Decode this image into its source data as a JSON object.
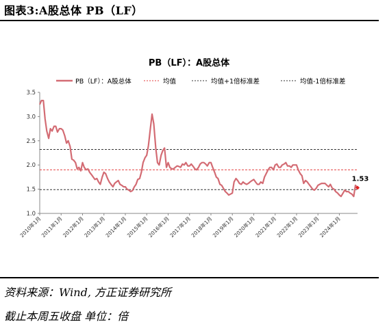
{
  "figure": {
    "title": "图表3:A股总体 PB（LF）",
    "source": "资料来源：Wind, 方正证券研究所",
    "note": "截止本周五收盘 单位：倍"
  },
  "chart_data": {
    "type": "line",
    "title": "PB（LF）：A股总体",
    "legend": [
      "PB（LF）：A股总体",
      "均值",
      "均值+1倍标准差",
      "均值-1倍标准差"
    ],
    "legend_position": "top",
    "ylim": [
      1.0,
      3.5
    ],
    "y_ticks": [
      "1.0",
      "1.5",
      "2.0",
      "2.5",
      "3.0",
      "3.5"
    ],
    "x_ticks": [
      "2010年1月",
      "2011年1月",
      "2012年1月",
      "2013年1月",
      "2014年1月",
      "2015年1月",
      "2016年1月",
      "2017年1月",
      "2018年1月",
      "2019年1月",
      "2020年1月",
      "2021年1月",
      "2022年1月",
      "2023年1月",
      "2024年1月"
    ],
    "x_range": [
      2010.0,
      2024.85
    ],
    "mean": 1.9,
    "mean_plus_1sd": 2.32,
    "mean_minus_1sd": 1.49,
    "last_value_label": "1.53",
    "colors": {
      "series": "#d36b73",
      "mean": "#e33b3b",
      "sd": "#333333",
      "last_marker": "#e02020"
    },
    "series": [
      {
        "name": "PB（LF）：A股总体",
        "x": [
          2010.0,
          2010.08,
          2010.17,
          2010.25,
          2010.33,
          2010.42,
          2010.5,
          2010.58,
          2010.67,
          2010.75,
          2010.83,
          2010.92,
          2011.0,
          2011.08,
          2011.17,
          2011.25,
          2011.33,
          2011.42,
          2011.5,
          2011.58,
          2011.67,
          2011.75,
          2011.83,
          2011.92,
          2012.0,
          2012.08,
          2012.17,
          2012.25,
          2012.33,
          2012.42,
          2012.5,
          2012.58,
          2012.67,
          2012.75,
          2012.83,
          2012.92,
          2013.0,
          2013.08,
          2013.17,
          2013.25,
          2013.33,
          2013.42,
          2013.5,
          2013.58,
          2013.67,
          2013.75,
          2013.83,
          2013.92,
          2014.0,
          2014.08,
          2014.17,
          2014.25,
          2014.33,
          2014.42,
          2014.5,
          2014.58,
          2014.67,
          2014.75,
          2014.83,
          2014.92,
          2015.0,
          2015.08,
          2015.17,
          2015.25,
          2015.33,
          2015.42,
          2015.5,
          2015.58,
          2015.67,
          2015.75,
          2015.83,
          2015.92,
          2016.0,
          2016.08,
          2016.17,
          2016.25,
          2016.33,
          2016.42,
          2016.5,
          2016.58,
          2016.67,
          2016.75,
          2016.83,
          2016.92,
          2017.0,
          2017.08,
          2017.17,
          2017.25,
          2017.33,
          2017.42,
          2017.5,
          2017.58,
          2017.67,
          2017.75,
          2017.83,
          2017.92,
          2018.0,
          2018.08,
          2018.17,
          2018.25,
          2018.33,
          2018.42,
          2018.5,
          2018.58,
          2018.67,
          2018.75,
          2018.83,
          2018.92,
          2019.0,
          2019.08,
          2019.17,
          2019.25,
          2019.33,
          2019.42,
          2019.5,
          2019.58,
          2019.67,
          2019.75,
          2019.83,
          2019.92,
          2020.0,
          2020.08,
          2020.17,
          2020.25,
          2020.33,
          2020.42,
          2020.5,
          2020.58,
          2020.67,
          2020.75,
          2020.83,
          2020.92,
          2021.0,
          2021.08,
          2021.17,
          2021.25,
          2021.33,
          2021.42,
          2021.5,
          2021.58,
          2021.67,
          2021.75,
          2021.83,
          2021.92,
          2022.0,
          2022.08,
          2022.17,
          2022.25,
          2022.33,
          2022.42,
          2022.5,
          2022.58,
          2022.67,
          2022.75,
          2022.83,
          2022.92,
          2023.0,
          2023.08,
          2023.17,
          2023.25,
          2023.33,
          2023.42,
          2023.5,
          2023.58,
          2023.67,
          2023.75,
          2023.83,
          2023.92,
          2024.0,
          2024.08,
          2024.17,
          2024.25,
          2024.33,
          2024.42,
          2024.5,
          2024.58,
          2024.67,
          2024.75,
          2024.85
        ],
        "values": [
          3.25,
          3.33,
          3.33,
          2.95,
          2.7,
          2.55,
          2.75,
          2.7,
          2.8,
          2.8,
          2.68,
          2.75,
          2.75,
          2.72,
          2.6,
          2.45,
          2.5,
          2.38,
          2.12,
          2.1,
          2.05,
          1.92,
          1.95,
          1.88,
          2.05,
          1.95,
          1.9,
          1.92,
          1.85,
          1.8,
          1.75,
          1.7,
          1.72,
          1.65,
          1.6,
          1.75,
          1.85,
          1.82,
          1.72,
          1.65,
          1.6,
          1.55,
          1.62,
          1.65,
          1.68,
          1.6,
          1.58,
          1.55,
          1.55,
          1.5,
          1.48,
          1.45,
          1.47,
          1.55,
          1.6,
          1.7,
          1.72,
          1.85,
          2.05,
          2.15,
          2.2,
          2.4,
          2.75,
          3.05,
          2.85,
          2.35,
          2.05,
          2.0,
          2.2,
          2.3,
          2.35,
          1.95,
          2.05,
          1.95,
          1.92,
          1.92,
          1.95,
          1.98,
          1.97,
          1.95,
          2.02,
          2.0,
          2.05,
          1.98,
          1.98,
          2.02,
          1.97,
          1.92,
          1.9,
          1.95,
          2.02,
          2.05,
          2.05,
          2.02,
          1.98,
          2.05,
          2.05,
          1.95,
          1.85,
          1.75,
          1.72,
          1.6,
          1.58,
          1.52,
          1.45,
          1.42,
          1.38,
          1.4,
          1.42,
          1.65,
          1.72,
          1.68,
          1.62,
          1.6,
          1.65,
          1.62,
          1.6,
          1.62,
          1.65,
          1.68,
          1.7,
          1.65,
          1.6,
          1.6,
          1.65,
          1.62,
          1.75,
          1.82,
          1.9,
          1.95,
          1.95,
          1.9,
          2.0,
          2.02,
          1.95,
          1.95,
          2.0,
          2.02,
          2.05,
          1.98,
          1.98,
          1.95,
          2.0,
          2.0,
          2.0,
          1.9,
          1.82,
          1.78,
          1.62,
          1.68,
          1.65,
          1.6,
          1.55,
          1.5,
          1.48,
          1.52,
          1.58,
          1.6,
          1.62,
          1.62,
          1.62,
          1.58,
          1.55,
          1.6,
          1.52,
          1.5,
          1.45,
          1.42,
          1.38,
          1.35,
          1.42,
          1.48,
          1.45,
          1.45,
          1.42,
          1.4,
          1.35,
          1.58,
          1.53
        ]
      }
    ]
  }
}
